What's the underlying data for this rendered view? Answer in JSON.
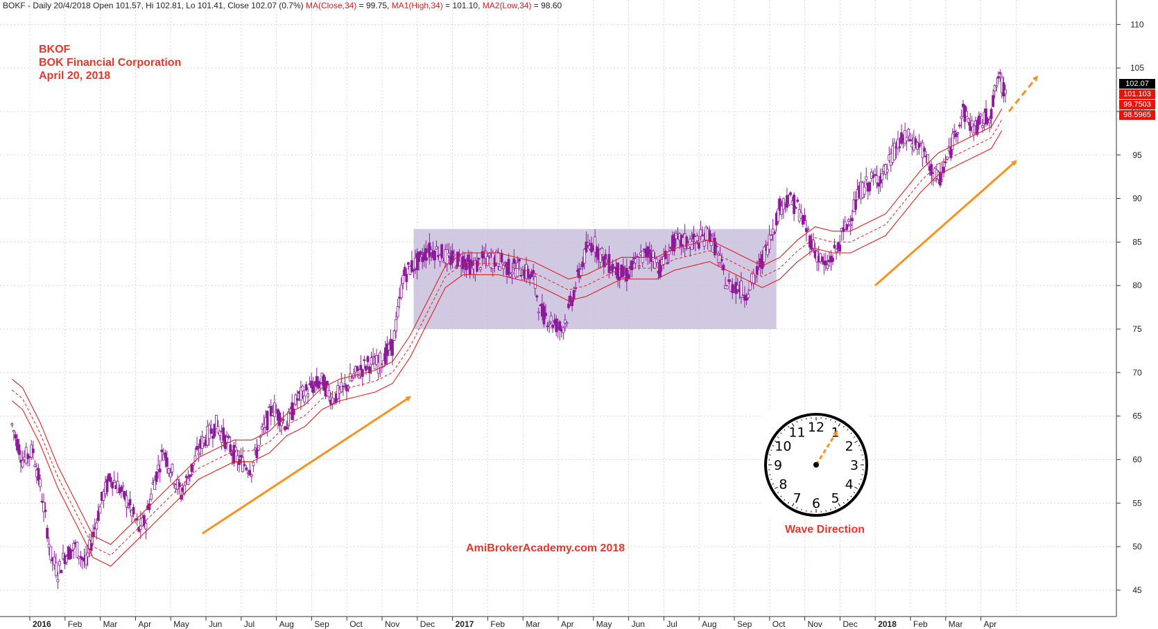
{
  "header": {
    "symbol_info": "BOKF - Daily 20/4/2018 Open 101.57, Hi 102.81, Lo 101.41, Close 102.07 (0.7%)",
    "ma": "MA(Close,34)",
    "ma_val": " = 99.75, ",
    "ma1": "MA1(High,34)",
    "ma1_val": " = 101.10, ",
    "ma2": "MA2(Low,34)",
    "ma2_val": " = 98.60"
  },
  "annotations": {
    "title_line1": "BKOF",
    "title_line2": "BOK Financial Corporation",
    "title_line3": "April 20, 2018",
    "credit": "AmiBrokerAcademy.com  2018",
    "clock_caption": "Wave Direction"
  },
  "price_labels": {
    "close": "102.07",
    "ma1": "101.103",
    "ma": "99.7503",
    "ma2": "98.5965"
  },
  "colors": {
    "candle": "#8b1a9a",
    "ma": "#e02020",
    "arrow": "#f7931e",
    "range_box": "#c8c0dc",
    "text_red": "#e03a2e"
  },
  "chart_data": {
    "type": "line",
    "title": "BOKF - Daily",
    "ylim": [
      43,
      112
    ],
    "y_ticks": [
      45,
      50,
      55,
      60,
      65,
      70,
      75,
      80,
      85,
      90,
      95,
      100,
      105,
      110
    ],
    "x_labels": [
      "2016",
      "Feb",
      "Mar",
      "Apr",
      "May",
      "Jun",
      "Jul",
      "Aug",
      "Sep",
      "Oct",
      "Nov",
      "Dec",
      "2017",
      "Feb",
      "Mar",
      "Apr",
      "May",
      "Jun",
      "Jul",
      "Aug",
      "Sep",
      "Oct",
      "Nov",
      "Dec",
      "2018",
      "Feb",
      "Mar",
      "Apr"
    ],
    "x_month_index": [
      0,
      1,
      2,
      3,
      4,
      5,
      6,
      7,
      8,
      9,
      10,
      11,
      12,
      13,
      14,
      15,
      16,
      17,
      18,
      19,
      20,
      21,
      22,
      23,
      24,
      25,
      26,
      27
    ],
    "price_path": {
      "x": [
        -0.8,
        -0.5,
        -0.2,
        0.0,
        0.2,
        0.3,
        0.5,
        0.7,
        1.0,
        1.3,
        1.6,
        1.8,
        2.0,
        2.2,
        2.5,
        2.8,
        3.0,
        3.2,
        3.5,
        3.8,
        4.0,
        4.3,
        4.6,
        5.0,
        5.3,
        5.6,
        6.0,
        6.3,
        6.6,
        7.0,
        7.3,
        7.6,
        8.0,
        8.3,
        8.6,
        9.0,
        9.3,
        9.6,
        10.0,
        10.2,
        10.3,
        10.5,
        10.8,
        11.0,
        11.3,
        11.6,
        12.0,
        12.3,
        12.6,
        13.0,
        13.3,
        13.6,
        14.0,
        14.2,
        14.5,
        14.8,
        15.0,
        15.2,
        15.5,
        15.7,
        16.0,
        16.3,
        16.6,
        17.0,
        17.3,
        17.6,
        18.0,
        18.3,
        18.6,
        19.0,
        19.2,
        19.5,
        19.8,
        20.0,
        20.3,
        20.6,
        21.0,
        21.2,
        21.5,
        21.8,
        22.0,
        22.3,
        22.6,
        23.0,
        23.3,
        23.6,
        24.0,
        24.3,
        24.6,
        25.0,
        25.2,
        25.5,
        25.8,
        26.0,
        26.2,
        26.5,
        26.8,
        27.0,
        27.2,
        27.4
      ],
      "y": [
        64,
        60,
        61,
        57,
        52,
        49,
        47,
        49,
        50,
        48,
        53,
        56,
        58,
        57,
        55,
        52,
        53,
        57,
        61,
        58,
        56,
        59,
        62,
        64,
        62,
        60,
        59,
        63,
        66,
        64,
        67,
        68,
        69,
        67,
        68,
        70,
        71,
        71,
        73,
        78,
        81,
        82,
        83,
        84,
        84,
        83,
        83,
        82,
        83,
        83,
        82,
        82,
        81,
        77,
        76,
        75,
        77,
        80,
        84,
        85,
        83,
        82,
        81,
        83,
        84,
        82,
        85,
        85,
        85,
        86,
        84,
        80,
        80,
        79,
        81,
        84,
        89,
        90,
        89,
        86,
        84,
        82,
        84,
        88,
        91,
        92,
        93,
        96,
        97,
        96,
        94,
        92,
        95,
        98,
        100,
        98,
        99,
        100,
        104,
        102
      ]
    },
    "ma_path": {
      "x": [
        -0.8,
        -0.5,
        0.0,
        0.5,
        1.0,
        1.5,
        2.0,
        2.5,
        3.0,
        3.5,
        4.0,
        4.5,
        5.0,
        5.5,
        6.0,
        6.5,
        7.0,
        7.5,
        8.0,
        8.5,
        9.0,
        9.5,
        10.0,
        10.5,
        11.0,
        11.5,
        12.0,
        12.5,
        13.0,
        13.5,
        14.0,
        14.5,
        15.0,
        15.5,
        16.0,
        16.5,
        17.0,
        17.5,
        18.0,
        18.5,
        19.0,
        19.5,
        20.0,
        20.5,
        21.0,
        21.5,
        22.0,
        22.5,
        23.0,
        23.5,
        24.0,
        24.5,
        25.0,
        25.5,
        26.0,
        26.5,
        27.0,
        27.4
      ],
      "y": [
        68,
        67,
        63,
        58,
        54,
        50,
        49,
        51,
        53,
        55,
        57,
        59,
        60,
        61,
        61,
        62,
        64,
        65,
        67,
        68,
        68.5,
        69,
        70,
        73,
        77,
        81,
        82.5,
        82.5,
        82.5,
        82,
        81.5,
        80.5,
        79.5,
        80,
        81,
        82,
        82,
        82,
        83,
        83.5,
        84,
        83,
        82,
        81,
        82,
        84,
        85.5,
        85,
        85,
        86,
        87,
        89.5,
        92,
        94,
        95,
        96,
        97,
        99.75
      ],
      "band": 1.25
    },
    "range_box": {
      "x0": 10.6,
      "x1": 20.9,
      "y_low": 75,
      "y_high": 86.5
    },
    "trend_arrows": [
      {
        "x0": 4.6,
        "y0": 51.5,
        "x1": 10.5,
        "y1": 67.2,
        "dashed": false
      },
      {
        "x0": 23.7,
        "y0": 80,
        "x1": 27.7,
        "y1": 94.3,
        "dashed": false
      },
      {
        "x0": 27.5,
        "y0": 100,
        "x1": 28.3,
        "y1": 104,
        "dashed": true
      }
    ]
  }
}
